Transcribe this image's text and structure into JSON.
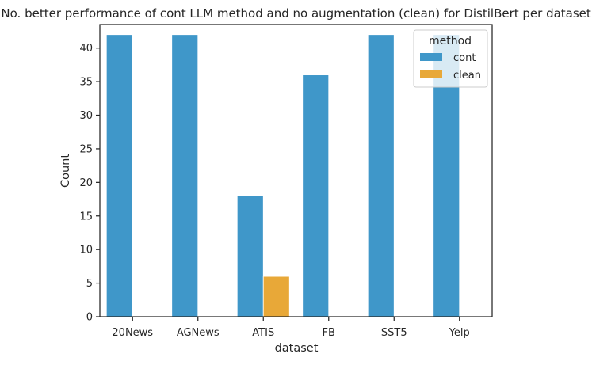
{
  "chart_data": {
    "type": "bar",
    "title": "No. better performance of cont LLM method and no augmentation (clean) for DistilBert per dataset.",
    "xlabel": "dataset",
    "ylabel": "Count",
    "categories": [
      "20News",
      "AGNews",
      "ATIS",
      "FB",
      "SST5",
      "Yelp"
    ],
    "series": [
      {
        "name": "cont",
        "color": "#3f97c9",
        "values": [
          42,
          42,
          18,
          36,
          42,
          42
        ]
      },
      {
        "name": "clean",
        "color": "#e8a838",
        "values": [
          0,
          0,
          6,
          0,
          0,
          0
        ]
      }
    ],
    "ylim": [
      0,
      43.5
    ],
    "yticks": [
      0,
      5,
      10,
      15,
      20,
      25,
      30,
      35,
      40
    ],
    "grid": false,
    "legend": {
      "title": "method",
      "placement": "top-right"
    }
  }
}
